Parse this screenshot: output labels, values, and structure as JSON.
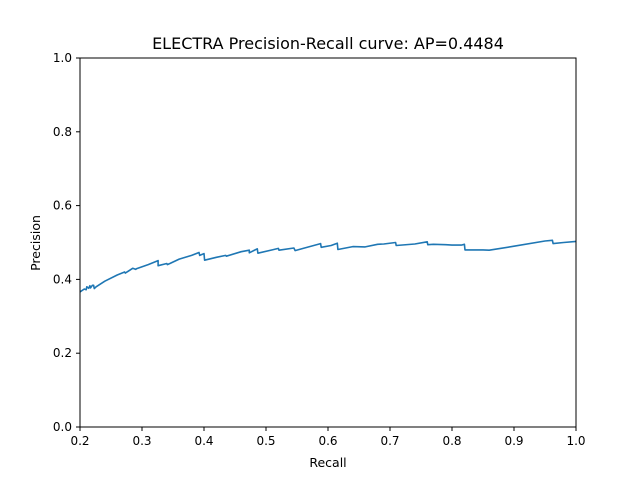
{
  "chart_data": {
    "type": "line",
    "title": "ELECTRA Precision-Recall curve: AP=0.4484",
    "xlabel": "Recall",
    "ylabel": "Precision",
    "xlim": [
      0.2,
      1.0
    ],
    "ylim": [
      0.0,
      1.0
    ],
    "x_ticks": [
      0.2,
      0.3,
      0.4,
      0.5,
      0.6,
      0.7,
      0.8,
      0.9,
      1.0
    ],
    "x_tick_labels": [
      "0.2",
      "0.3",
      "0.4",
      "0.5",
      "0.6",
      "0.7",
      "0.8",
      "0.9",
      "1.0"
    ],
    "y_ticks": [
      0.0,
      0.2,
      0.4,
      0.6,
      0.8,
      1.0
    ],
    "y_tick_labels": [
      "0.0",
      "0.2",
      "0.4",
      "0.6",
      "0.8",
      "1.0"
    ],
    "grid": false,
    "legend": "none",
    "series_color": "#1f77b4",
    "series": [
      {
        "x": [
          0.2,
          0.207,
          0.21,
          0.211,
          0.214,
          0.216,
          0.217,
          0.22,
          0.222,
          0.223,
          0.226,
          0.24,
          0.26,
          0.272,
          0.273,
          0.285,
          0.29,
          0.291,
          0.31,
          0.326,
          0.326,
          0.34,
          0.341,
          0.345,
          0.36,
          0.38,
          0.392,
          0.393,
          0.4,
          0.401,
          0.42,
          0.435,
          0.436,
          0.46,
          0.473,
          0.473,
          0.486,
          0.487,
          0.51,
          0.52,
          0.521,
          0.545,
          0.547,
          0.56,
          0.588,
          0.589,
          0.605,
          0.615,
          0.616,
          0.64,
          0.66,
          0.68,
          0.69,
          0.709,
          0.71,
          0.74,
          0.76,
          0.761,
          0.77,
          0.79,
          0.8,
          0.815,
          0.82,
          0.821,
          0.85,
          0.86,
          0.9,
          0.95,
          0.962,
          0.963,
          0.98,
          1.0
        ],
        "y": [
          0.366,
          0.374,
          0.372,
          0.38,
          0.376,
          0.383,
          0.377,
          0.384,
          0.384,
          0.375,
          0.38,
          0.395,
          0.412,
          0.42,
          0.417,
          0.43,
          0.427,
          0.429,
          0.44,
          0.451,
          0.437,
          0.443,
          0.44,
          0.443,
          0.455,
          0.465,
          0.473,
          0.465,
          0.47,
          0.452,
          0.46,
          0.465,
          0.463,
          0.475,
          0.479,
          0.472,
          0.483,
          0.471,
          0.48,
          0.484,
          0.479,
          0.485,
          0.478,
          0.484,
          0.497,
          0.487,
          0.492,
          0.498,
          0.481,
          0.489,
          0.488,
          0.495,
          0.496,
          0.5,
          0.492,
          0.496,
          0.502,
          0.494,
          0.495,
          0.494,
          0.493,
          0.493,
          0.495,
          0.48,
          0.48,
          0.479,
          0.49,
          0.504,
          0.506,
          0.497,
          0.5,
          0.503
        ]
      }
    ]
  }
}
